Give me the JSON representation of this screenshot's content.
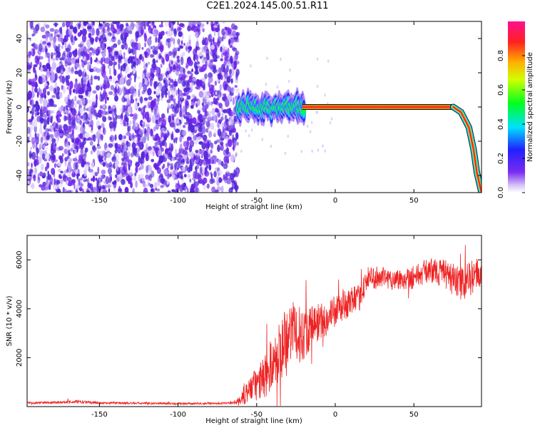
{
  "title": "C2E1.2024.145.00.51.R11",
  "colors": {
    "snr_line": "#ee2222",
    "spectrum_noise": "#7a2cf0",
    "spectrum_peak": "#ff2020"
  },
  "chart_data": [
    {
      "type": "heatmap",
      "title": "",
      "xlabel": "Height of straight line (km)",
      "ylabel": "Frequency (Hz)",
      "xlim": [
        -196,
        93
      ],
      "ylim": [
        -50,
        50
      ],
      "xticks": [
        -150,
        -100,
        -50,
        0,
        50
      ],
      "xtick_labels": [
        "-150",
        "-100",
        "-50",
        "0",
        "50"
      ],
      "yticks": [
        -40,
        -20,
        0,
        20,
        40
      ],
      "ytick_labels": [
        "-40",
        "-20",
        "0",
        "20",
        "40"
      ],
      "colorbar": {
        "label": "Normalized spectral amplitude",
        "range": [
          0,
          1
        ],
        "ticks": [
          0.0,
          0.2,
          0.4,
          0.6,
          0.8
        ],
        "tick_labels": [
          "0.0",
          "0.2",
          "0.4",
          "0.6",
          "0.8"
        ],
        "colormap": "rainbow (white-purple-blue-cyan-green-yellow-orange-red-magenta)"
      },
      "regions": [
        {
          "name": "noise",
          "x_range": [
            -196,
            -62
          ],
          "freq_range": [
            -50,
            50
          ],
          "amplitude": "low (~0.05-0.15)"
        },
        {
          "name": "broadened carrier",
          "x_range": [
            -62,
            -20
          ],
          "freq_center": 0,
          "freq_halfwidth": 7,
          "amplitude": "0.3-0.8"
        },
        {
          "name": "narrow carrier",
          "x_range": [
            -20,
            75
          ],
          "freq_center": 0,
          "freq_halfwidth": 2,
          "amplitude": "~0.9-1.0"
        },
        {
          "name": "descending tail",
          "x_range": [
            75,
            93
          ],
          "freq_points": [
            [
              75,
              0
            ],
            [
              80,
              -3
            ],
            [
              85,
              -12
            ],
            [
              88,
              -25
            ],
            [
              90,
              -38
            ],
            [
              93,
              -50
            ]
          ]
        }
      ],
      "grid": false
    },
    {
      "type": "line",
      "title": "",
      "xlabel": "Height of straight line (km)",
      "ylabel": "SNR (10 * v/v)",
      "xlim": [
        -196,
        93
      ],
      "ylim": [
        0,
        7000
      ],
      "xticks": [
        -150,
        -100,
        -50,
        0,
        50
      ],
      "xtick_labels": [
        "-150",
        "-100",
        "-50",
        "0",
        "50"
      ],
      "yticks": [
        2000,
        4000,
        6000
      ],
      "ytick_labels": [
        "2000",
        "4000",
        "6000"
      ],
      "series": [
        {
          "x": [
            -196,
            -180,
            -165,
            -150,
            -130,
            -110,
            -90,
            -75,
            -65,
            -60,
            -55,
            -50,
            -45,
            -40,
            -35,
            -30,
            -25,
            -20,
            -15,
            -10,
            -5,
            0,
            5,
            10,
            15,
            20,
            25,
            30,
            40,
            50,
            60,
            70,
            80,
            85,
            90,
            93
          ],
          "y": [
            150,
            170,
            200,
            150,
            140,
            130,
            120,
            130,
            150,
            250,
            700,
            900,
            1200,
            1800,
            2300,
            3200,
            2900,
            3000,
            3300,
            3500,
            3600,
            3900,
            4100,
            4300,
            4400,
            5200,
            5300,
            5250,
            5200,
            5300,
            5600,
            5400,
            5000,
            5200,
            5400,
            5300
          ],
          "spread": [
            40,
            50,
            70,
            50,
            40,
            40,
            40,
            40,
            50,
            250,
            500,
            700,
            900,
            1100,
            1300,
            1400,
            1200,
            1100,
            900,
            800,
            700,
            650,
            600,
            600,
            550,
            500,
            500,
            450,
            450,
            500,
            500,
            600,
            700,
            700,
            700,
            600
          ]
        }
      ],
      "grid": false
    }
  ]
}
